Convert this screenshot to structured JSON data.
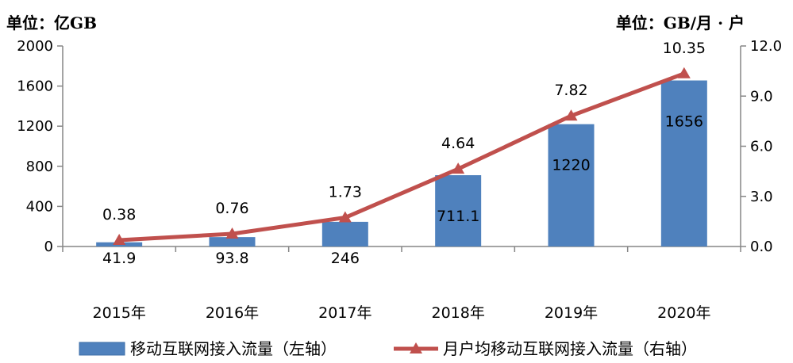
{
  "chart_data": {
    "type": "bar+line",
    "left_unit": "单位：亿GB",
    "right_unit": "单位：GB/月 · 户",
    "categories": [
      "2015年",
      "2016年",
      "2017年",
      "2018年",
      "2019年",
      "2020年"
    ],
    "left_ticks": [
      "0",
      "400",
      "800",
      "1200",
      "1600",
      "2000"
    ],
    "right_ticks": [
      "0.0",
      "3.0",
      "6.0",
      "9.0",
      "12.0"
    ],
    "ylim_left": [
      0,
      2000
    ],
    "ylim_right": [
      0,
      12
    ],
    "series": [
      {
        "name": "移动互联网接入流量（左轴）",
        "type": "bar",
        "axis": "left",
        "color": "#4F81BD",
        "values": [
          41.9,
          93.8,
          246,
          711.1,
          1220,
          1656
        ],
        "labels": [
          "41.9",
          "93.8",
          "246",
          "711.1",
          "1220",
          "1656"
        ]
      },
      {
        "name": "月户均移动互联网接入流量（右轴）",
        "type": "line",
        "axis": "right",
        "color": "#C0504D",
        "values": [
          0.38,
          0.76,
          1.73,
          4.64,
          7.82,
          10.35
        ],
        "labels": [
          "0.38",
          "0.76",
          "1.73",
          "4.64",
          "7.82",
          "10.35"
        ]
      }
    ],
    "legend_position": "bottom",
    "grid": false
  }
}
